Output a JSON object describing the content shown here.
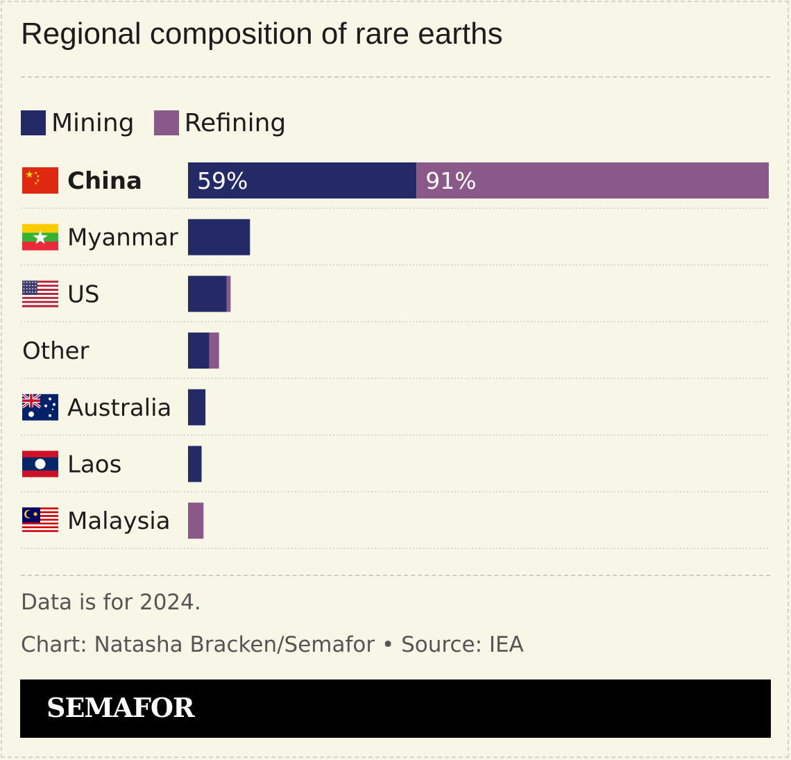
{
  "title": "Regional composition of rare earths",
  "legend": {
    "mining": "Mining",
    "refining": "Refining"
  },
  "colors": {
    "mining": "#242a66",
    "refining": "#8a598a",
    "background": "#f8f6e6"
  },
  "chart_data": {
    "type": "bar",
    "orientation": "horizontal",
    "stacked": true,
    "categories": [
      "China",
      "Myanmar",
      "US",
      "Other",
      "Australia",
      "Laos",
      "Malaysia"
    ],
    "series": [
      {
        "name": "Mining",
        "values": [
          59,
          16,
          10,
          5.5,
          4.5,
          3.5,
          0
        ]
      },
      {
        "name": "Refining",
        "values": [
          91,
          0,
          1,
          2.5,
          0,
          0,
          4
        ]
      }
    ],
    "data_labels": {
      "China": {
        "Mining": "59%",
        "Refining": "91%"
      }
    },
    "xlim": [
      0,
      150
    ],
    "grid": false,
    "highlighted_category": "China",
    "flags": {
      "China": "china-flag-icon",
      "Myanmar": "myanmar-flag-icon",
      "US": "us-flag-icon",
      "Other": null,
      "Australia": "australia-flag-icon",
      "Laos": "laos-flag-icon",
      "Malaysia": "malaysia-flag-icon"
    }
  },
  "footnotes": {
    "note": "Data is for 2024.",
    "credit": "Chart: Natasha Bracken/Semafor • Source: IEA"
  },
  "brand": "SEMAFOR"
}
